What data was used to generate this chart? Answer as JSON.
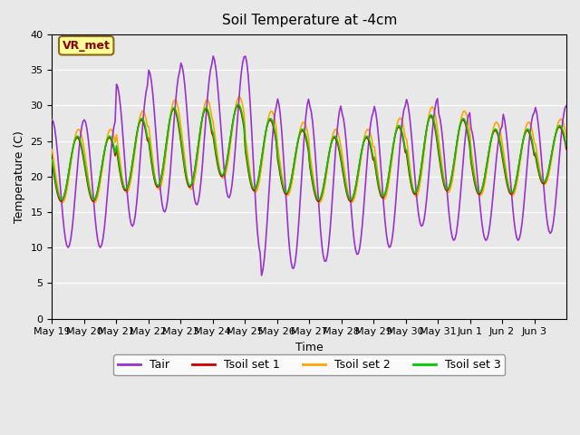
{
  "title": "Soil Temperature at -4cm",
  "xlabel": "Time",
  "ylabel": "Temperature (C)",
  "ylim": [
    0,
    40
  ],
  "yticks": [
    0,
    5,
    10,
    15,
    20,
    25,
    30,
    35,
    40
  ],
  "xtick_labels": [
    "May 19",
    "May 20",
    "May 21",
    "May 22",
    "May 23",
    "May 24",
    "May 25",
    "May 26",
    "May 27",
    "May 28",
    "May 29",
    "May 30",
    "May 31",
    "Jun 1",
    "Jun 2",
    "Jun 3"
  ],
  "background_color": "#e8e8e8",
  "plot_bg_color": "#e8e8e8",
  "annotation_text": "VR_met",
  "annotation_color": "#8b0000",
  "annotation_bg": "#ffff99",
  "colors": {
    "Tair": "#9932CC",
    "Tsoil_set1": "#cc0000",
    "Tsoil_set2": "#ffa500",
    "Tsoil_set3": "#00cc00"
  },
  "legend_labels": [
    "Tair",
    "Tsoil set 1",
    "Tsoil set 2",
    "Tsoil set 3"
  ]
}
